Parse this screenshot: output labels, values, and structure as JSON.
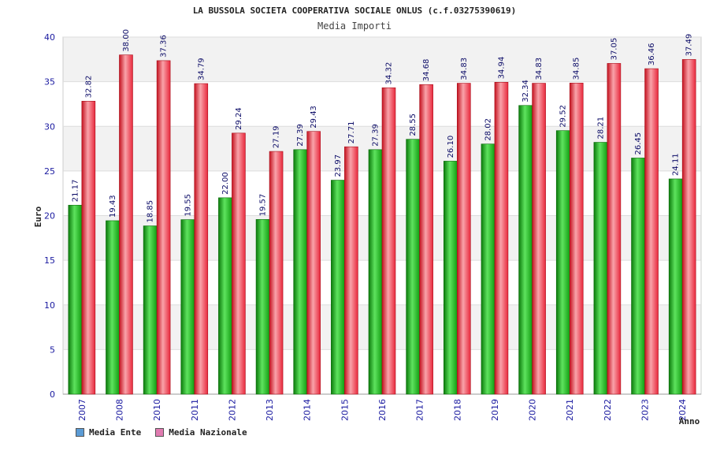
{
  "chart_data": {
    "type": "bar",
    "title": "LA BUSSOLA SOCIETA COOPERATIVA SOCIALE ONLUS (c.f.03275390619)",
    "subtitle": "Media Importi",
    "ylabel": "Euro",
    "xlabel": "Anno",
    "ylim": [
      0,
      40
    ],
    "yticks": [
      0,
      5,
      10,
      15,
      20,
      25,
      30,
      35,
      40
    ],
    "grid": true,
    "legend_position": "bottom-left",
    "categories": [
      "2007",
      "2008",
      "2010",
      "2011",
      "2012",
      "2013",
      "2014",
      "2015",
      "2016",
      "2017",
      "2018",
      "2019",
      "2020",
      "2021",
      "2022",
      "2023",
      "2024"
    ],
    "series": [
      {
        "name": "Media Ente",
        "legend_color": "#5b9bd5",
        "bar_color": "#1aa01a",
        "values": [
          21.17,
          19.43,
          18.85,
          19.55,
          22.0,
          19.57,
          27.39,
          23.97,
          27.39,
          28.55,
          26.1,
          28.02,
          32.34,
          29.52,
          28.21,
          26.45,
          24.11
        ],
        "labels": [
          "21.17",
          "19.43",
          "18.85",
          "19.55",
          "22.00",
          "19.57",
          "27.39",
          "23.97",
          "27.39",
          "28.55",
          "26.10",
          "28.02",
          "32.34",
          "29.52",
          "28.21",
          "26.45",
          "24.11"
        ]
      },
      {
        "name": "Media Nazionale",
        "legend_color": "#e07bb0",
        "bar_color": "#e8283c",
        "values": [
          32.82,
          38.0,
          37.36,
          34.79,
          29.24,
          27.19,
          29.43,
          27.71,
          34.32,
          34.68,
          34.83,
          34.94,
          34.83,
          34.85,
          37.05,
          36.46,
          37.49
        ],
        "labels": [
          "32.82",
          "38.00",
          "37.36",
          "34.79",
          "29.24",
          "27.19",
          "29.43",
          "27.71",
          "34.32",
          "34.68",
          "34.83",
          "34.94",
          "34.83",
          "34.85",
          "37.05",
          "36.46",
          "37.49"
        ]
      }
    ]
  }
}
